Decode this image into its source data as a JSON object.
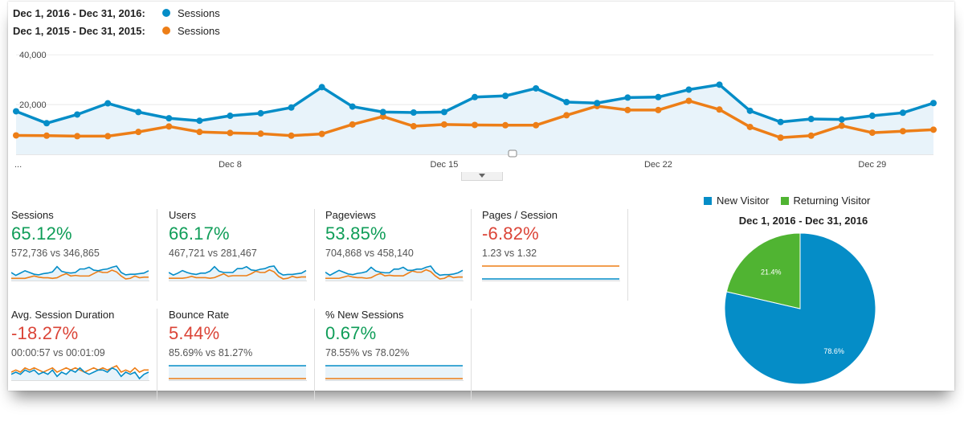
{
  "colors": {
    "current": "#058dc7",
    "previous": "#ed7e17",
    "new_visitor": "#058dc7",
    "returning_visitor": "#50b432",
    "positive": "#0f9d58",
    "negative": "#db4437"
  },
  "legend": {
    "current_range": "Dec 1, 2016 - Dec 31, 2016:",
    "current_metric": "Sessions",
    "previous_range": "Dec 1, 2015 - Dec 31, 2015:",
    "previous_metric": "Sessions"
  },
  "chart_data": [
    {
      "type": "line",
      "x": [
        "Dec 1",
        "Dec 2",
        "Dec 3",
        "Dec 4",
        "Dec 5",
        "Dec 6",
        "Dec 7",
        "Dec 8",
        "Dec 9",
        "Dec 10",
        "Dec 11",
        "Dec 12",
        "Dec 13",
        "Dec 14",
        "Dec 15",
        "Dec 16",
        "Dec 17",
        "Dec 18",
        "Dec 19",
        "Dec 20",
        "Dec 21",
        "Dec 22",
        "Dec 23",
        "Dec 24",
        "Dec 25",
        "Dec 26",
        "Dec 27",
        "Dec 28",
        "Dec 29",
        "Dec 30",
        "Dec 31"
      ],
      "tick_labels": [
        "...",
        "Dec 8",
        "Dec 15",
        "Dec 22",
        "Dec 29"
      ],
      "tick_index": [
        0,
        7,
        14,
        21,
        28
      ],
      "y_ticks": [
        "40,000",
        "20,000"
      ],
      "y_tick_values": [
        40000,
        20000
      ],
      "ylim": [
        0,
        42000
      ],
      "area_fill": true,
      "series": [
        {
          "name": "Dec 1, 2016 - Dec 31, 2016",
          "values": [
            17300,
            12500,
            16000,
            20500,
            17000,
            14500,
            13500,
            15500,
            16500,
            18800,
            27000,
            19200,
            17000,
            16800,
            17000,
            23000,
            23500,
            26500,
            21000,
            20600,
            22800,
            23000,
            26000,
            28000,
            17500,
            13000,
            14200,
            14000,
            15500,
            16700,
            20600
          ]
        },
        {
          "name": "Dec 1, 2015 - Dec 31, 2015",
          "values": [
            7600,
            7500,
            7300,
            7300,
            9000,
            11200,
            9000,
            8600,
            8300,
            7500,
            8200,
            12000,
            15200,
            11300,
            12000,
            11800,
            11700,
            11700,
            15700,
            19400,
            17800,
            17800,
            21500,
            18000,
            11000,
            6700,
            7500,
            11500,
            8700,
            9300,
            9900
          ]
        }
      ]
    },
    {
      "type": "pie",
      "title": "Dec 1, 2016 - Dec 31, 2016",
      "legend_position": "top",
      "slices": [
        {
          "label": "New Visitor",
          "value": 78.6,
          "display": "78.6%"
        },
        {
          "label": "Returning Visitor",
          "value": 21.4,
          "display": "21.4%"
        }
      ]
    }
  ],
  "metrics": [
    {
      "title": "Sessions",
      "change": "65.12%",
      "direction": "up",
      "comparison": "572,736 vs 346,865",
      "spark_current": [
        17,
        12,
        16,
        20,
        17,
        14,
        13,
        15,
        16,
        18,
        27,
        19,
        17,
        16,
        17,
        23,
        23,
        26,
        21,
        20,
        22,
        23,
        26,
        28,
        17,
        13,
        14,
        14,
        15,
        16,
        20
      ],
      "spark_previous": [
        7,
        7,
        7,
        7,
        9,
        11,
        9,
        8,
        8,
        7,
        8,
        12,
        15,
        11,
        12,
        11,
        11,
        11,
        15,
        19,
        17,
        17,
        21,
        18,
        11,
        6,
        7,
        11,
        8,
        9,
        9
      ]
    },
    {
      "title": "Users",
      "change": "66.17%",
      "direction": "up",
      "comparison": "467,721 vs 281,467",
      "spark_current": [
        16,
        12,
        15,
        19,
        16,
        14,
        13,
        15,
        15,
        18,
        25,
        18,
        16,
        16,
        16,
        22,
        22,
        25,
        20,
        19,
        21,
        22,
        25,
        26,
        16,
        12,
        13,
        13,
        14,
        15,
        19
      ],
      "spark_previous": [
        7,
        7,
        7,
        7,
        8,
        10,
        8,
        8,
        8,
        7,
        8,
        11,
        14,
        10,
        11,
        11,
        11,
        11,
        14,
        18,
        16,
        16,
        20,
        17,
        10,
        6,
        7,
        10,
        8,
        9,
        9
      ]
    },
    {
      "title": "Pageviews",
      "change": "53.85%",
      "direction": "up",
      "comparison": "704,868 vs 458,140",
      "spark_current": [
        18,
        13,
        17,
        21,
        18,
        15,
        14,
        16,
        17,
        19,
        26,
        20,
        18,
        17,
        17,
        23,
        23,
        26,
        21,
        21,
        23,
        23,
        26,
        28,
        18,
        13,
        14,
        14,
        15,
        17,
        21
      ],
      "spark_previous": [
        8,
        8,
        8,
        8,
        10,
        12,
        10,
        9,
        9,
        8,
        9,
        13,
        16,
        12,
        13,
        12,
        12,
        12,
        16,
        20,
        18,
        18,
        22,
        19,
        12,
        7,
        8,
        12,
        9,
        10,
        10
      ]
    },
    {
      "title": "Pages / Session",
      "change": "-6.82%",
      "direction": "down",
      "comparison": "1.23 vs 1.32",
      "spark_current": [
        20,
        20,
        20,
        20,
        20,
        20,
        20,
        20,
        20,
        20,
        20,
        20,
        20,
        20,
        20,
        20,
        20,
        20,
        20,
        20,
        20,
        20,
        20,
        20,
        20,
        20,
        20,
        20,
        20,
        20,
        20
      ],
      "spark_previous": [
        21,
        21,
        21,
        21,
        21,
        21,
        21,
        21,
        21,
        21,
        21,
        21,
        21,
        21,
        21,
        21,
        21,
        21,
        21,
        21,
        21,
        21,
        21,
        21,
        21,
        21,
        21,
        21,
        21,
        21,
        21
      ]
    },
    {
      "title": "Avg. Session Duration",
      "change": "-18.27%",
      "direction": "down",
      "comparison": "00:00:57 vs 00:01:09",
      "spark_current": [
        13,
        14,
        13,
        15,
        14,
        15,
        13,
        14,
        13,
        15,
        12,
        14,
        13,
        15,
        14,
        16,
        14,
        13,
        14,
        15,
        15,
        14,
        16,
        15,
        12,
        14,
        13,
        14,
        11,
        13,
        14
      ],
      "spark_previous": [
        14,
        15,
        14,
        16,
        15,
        16,
        15,
        14,
        15,
        16,
        14,
        15,
        16,
        15,
        16,
        15,
        14,
        15,
        16,
        15,
        16,
        15,
        16,
        17,
        14,
        15,
        14,
        16,
        14,
        15,
        15
      ]
    },
    {
      "title": "Bounce Rate",
      "change": "5.44%",
      "direction": "down",
      "comparison": "85.69% vs 81.27%",
      "spark_current": [
        20,
        20,
        20,
        20,
        20,
        20,
        20,
        20,
        20,
        20,
        20,
        20,
        20,
        20,
        20,
        20,
        20,
        20,
        20,
        20,
        20,
        20,
        20,
        20,
        20,
        20,
        20,
        20,
        20,
        20,
        20
      ],
      "spark_previous": [
        19,
        19,
        19,
        19,
        19,
        19,
        19,
        19,
        19,
        19,
        19,
        19,
        19,
        19,
        19,
        19,
        19,
        19,
        19,
        19,
        19,
        19,
        19,
        19,
        19,
        19,
        19,
        19,
        19,
        19,
        19
      ]
    },
    {
      "title": "% New Sessions",
      "change": "0.67%",
      "direction": "up",
      "comparison": "78.55% vs 78.02%",
      "spark_current": [
        20,
        20,
        20,
        20,
        20,
        20,
        20,
        20,
        20,
        20,
        20,
        20,
        20,
        20,
        20,
        20,
        20,
        20,
        20,
        20,
        20,
        20,
        20,
        20,
        20,
        20,
        20,
        20,
        20,
        20,
        20
      ],
      "spark_previous": [
        19,
        19,
        19,
        19,
        19,
        19,
        19,
        19,
        19,
        19,
        19,
        19,
        19,
        19,
        19,
        19,
        19,
        19,
        19,
        19,
        19,
        19,
        19,
        19,
        19,
        19,
        19,
        19,
        19,
        19,
        19
      ]
    }
  ]
}
